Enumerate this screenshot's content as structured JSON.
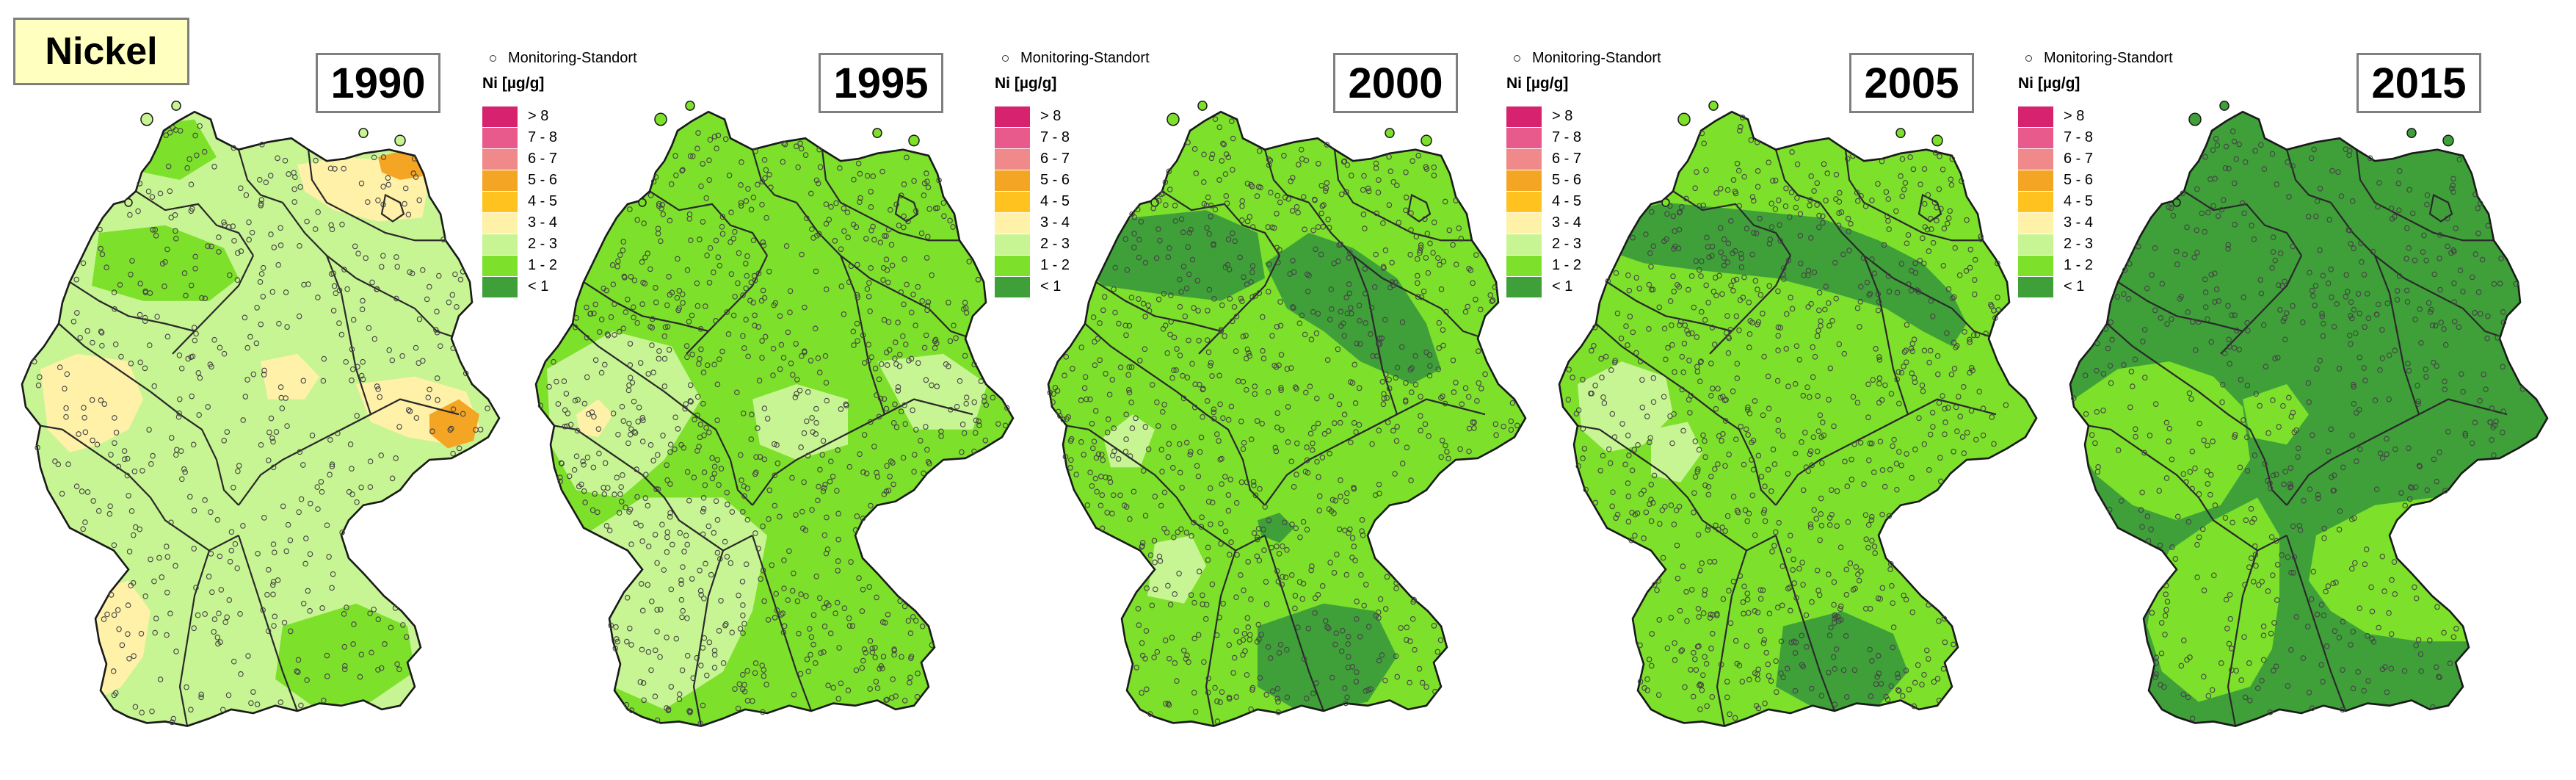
{
  "title": "Nickel",
  "legend": {
    "monitoring_label": "Monitoring-Standort",
    "unit": "Ni [µg/g]",
    "classes": [
      {
        "label": "> 8",
        "color": "#d6226f"
      },
      {
        "label": "7 - 8",
        "color": "#e85a8c"
      },
      {
        "label": "6 - 7",
        "color": "#f08a8a"
      },
      {
        "label": "5 - 6",
        "color": "#f5a524"
      },
      {
        "label": "4 - 5",
        "color": "#ffc21e"
      },
      {
        "label": "3 - 4",
        "color": "#fff1a8"
      },
      {
        "label": "2 - 3",
        "color": "#c8f593"
      },
      {
        "label": "1 - 2",
        "color": "#7de02b"
      },
      {
        "label": "< 1",
        "color": "#3fa03a"
      }
    ]
  },
  "maps": [
    {
      "year": "1990",
      "base_class": "2 - 3"
    },
    {
      "year": "1995",
      "base_class": "1 - 2"
    },
    {
      "year": "2000",
      "base_class": "1 - 2"
    },
    {
      "year": "2005",
      "base_class": "1 - 2"
    },
    {
      "year": "2015",
      "base_class": "< 1"
    }
  ]
}
